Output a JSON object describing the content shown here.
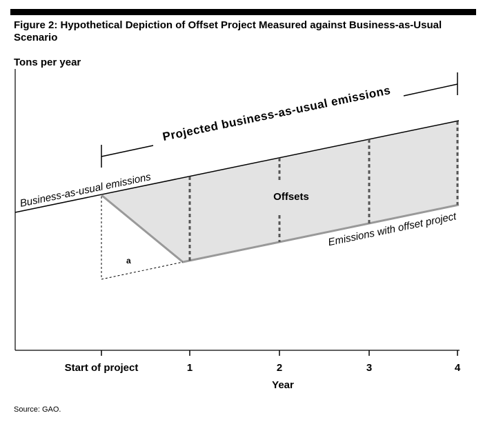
{
  "header": {
    "title": "Figure 2: Hypothetical Depiction of Offset Project Measured against Business-as-Usual Scenario"
  },
  "diagram": {
    "y_axis_label": "Tons per year",
    "bracket_label": "Projected business-as-usual emissions",
    "bau_label": "Business-as-usual emissions",
    "project_label": "Emissions with offset project",
    "offsets_label": "Offsets",
    "triangle_label": "a",
    "x_labels": [
      "Start of project",
      "1",
      "2",
      "3",
      "4"
    ],
    "x_axis_label": "Year"
  },
  "footer": {
    "source": "Source: GAO."
  }
}
